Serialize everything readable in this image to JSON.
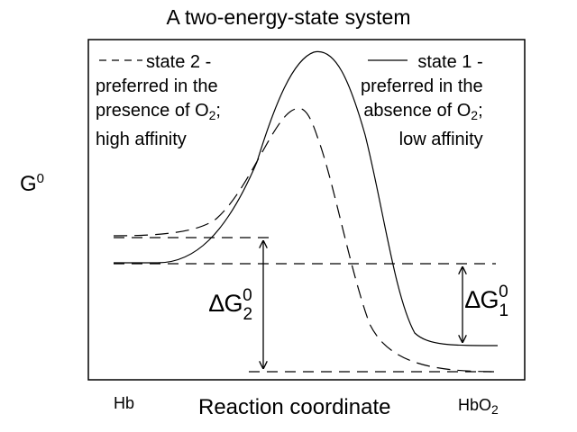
{
  "title": "A  two-energy-state  system",
  "y_axis": {
    "symbol": "G",
    "superscript": "0"
  },
  "x_axis": {
    "label": "Reaction coordinate",
    "left_end": "Hb",
    "right_end_base": "HbO",
    "right_end_sub": "2"
  },
  "legend_state2": {
    "line1": "state 2 -",
    "line2": "preferred in the",
    "line3_base": "presence of O",
    "line3_sub": "2",
    "line3_tail": ";",
    "line4": "high affinity",
    "line_style": "dashed"
  },
  "legend_state1": {
    "line1": "state 1 -",
    "line2": "preferred in the",
    "line3_base": "absence of O",
    "line3_sub": "2",
    "line3_tail": ";",
    "line4": "low affinity",
    "line_style": "solid"
  },
  "delta_g2": {
    "base": "∆G",
    "subscript": "2",
    "superscript": "0"
  },
  "delta_g1": {
    "base": "∆G",
    "subscript": "1",
    "superscript": "0"
  }
}
